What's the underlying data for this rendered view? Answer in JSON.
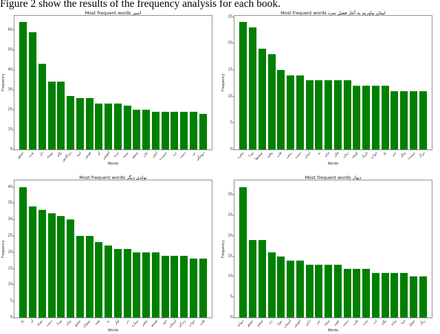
{
  "page": {
    "caption": "Figure 2 show the results of the frequency analysis for each book."
  },
  "colors": {
    "bar": "#008000",
    "spine": "#8f8f8f",
    "text": "#111111"
  },
  "chart_data": [
    {
      "type": "bar",
      "title": "Most frequent words اسیر",
      "xlabel": "Words",
      "ylabel": "Frequency",
      "ylim": [
        0,
        67.2
      ],
      "yticks": [
        0,
        10,
        20,
        30,
        40,
        50,
        60
      ],
      "grid": false,
      "legend": "none",
      "categories": [
        "عشق",
        "شب",
        "دل",
        "بوسه",
        "نگاه",
        "دیدگانش",
        "امید",
        "هوس",
        "او",
        "آغوش",
        "دیده",
        "سینه",
        "چشم",
        "جان",
        "آتش",
        "حسرت",
        "درد",
        "دست",
        "تن",
        "دیوانگی"
      ],
      "values": [
        64,
        59,
        43,
        34,
        34,
        27,
        26,
        26,
        23,
        23,
        23,
        22,
        20,
        20,
        19,
        19,
        19,
        19,
        19,
        18
      ]
    },
    {
      "type": "bar",
      "title": "Most frequent words ایمان بیاوریم به آغاز فصل سرد",
      "xlabel": "Words",
      "ylabel": "Frequency",
      "ylim": [
        0,
        25.2
      ],
      "yticks": [
        0,
        5,
        10,
        15,
        20,
        25
      ],
      "grid": false,
      "legend": "none",
      "categories": [
        "پنجره",
        "صدا",
        "چشمها",
        "وقتی",
        "قلب",
        "زمین",
        "دست",
        "ایمان",
        "نه",
        "خانه",
        "فکر",
        "زمان",
        "کوچه",
        "تاریک",
        "خواب",
        "باد",
        "سر",
        "سال",
        "دوست",
        "مرگ"
      ],
      "values": [
        24,
        23,
        19,
        18,
        15,
        14,
        14,
        13,
        13,
        13,
        13,
        13,
        12,
        12,
        12,
        12,
        11,
        11,
        11,
        11
      ]
    },
    {
      "type": "bar",
      "title": "Most frequent words تولدی دیگر",
      "xlabel": "Words",
      "ylabel": "Frequency",
      "ylim": [
        0,
        42
      ],
      "yticks": [
        0,
        5,
        10,
        15,
        20,
        25,
        30,
        35,
        40
      ],
      "grid": false,
      "legend": "none",
      "categories": [
        "باد",
        "آه",
        "جمله",
        "دست",
        "صدا",
        "تمام",
        "عشق",
        "میتوان",
        "همه",
        "به",
        "آواز",
        "در",
        "ستاره",
        "چقدر",
        "هستم",
        "خود",
        "آسمان",
        "زندگی",
        "خواب",
        "قلب"
      ],
      "values": [
        40,
        34,
        33,
        32,
        31,
        30,
        25,
        25,
        23,
        22,
        21,
        21,
        20,
        20,
        20,
        19,
        19,
        19,
        18,
        18
      ]
    },
    {
      "type": "bar",
      "title": "Most frequent words دیوار",
      "xlabel": "Words",
      "ylabel": "Frequency",
      "ylim": [
        0,
        33.6
      ],
      "yticks": [
        0,
        5,
        10,
        15,
        20,
        25,
        30
      ],
      "grid": false,
      "legend": "none",
      "categories": [
        "دیوانه",
        "عشق",
        "چشم",
        "زن",
        "موج",
        "آسمان",
        "آغوش",
        "دامن",
        "من",
        "سیاه",
        "چون",
        "دست",
        "قلب",
        "شب",
        "لب",
        "نگاه",
        "سایه",
        "خدا",
        "شوق",
        "رنگ"
      ],
      "values": [
        32,
        19,
        19,
        16,
        15,
        14,
        14,
        13,
        13,
        13,
        13,
        12,
        12,
        12,
        11,
        11,
        11,
        11,
        10,
        10
      ]
    }
  ]
}
